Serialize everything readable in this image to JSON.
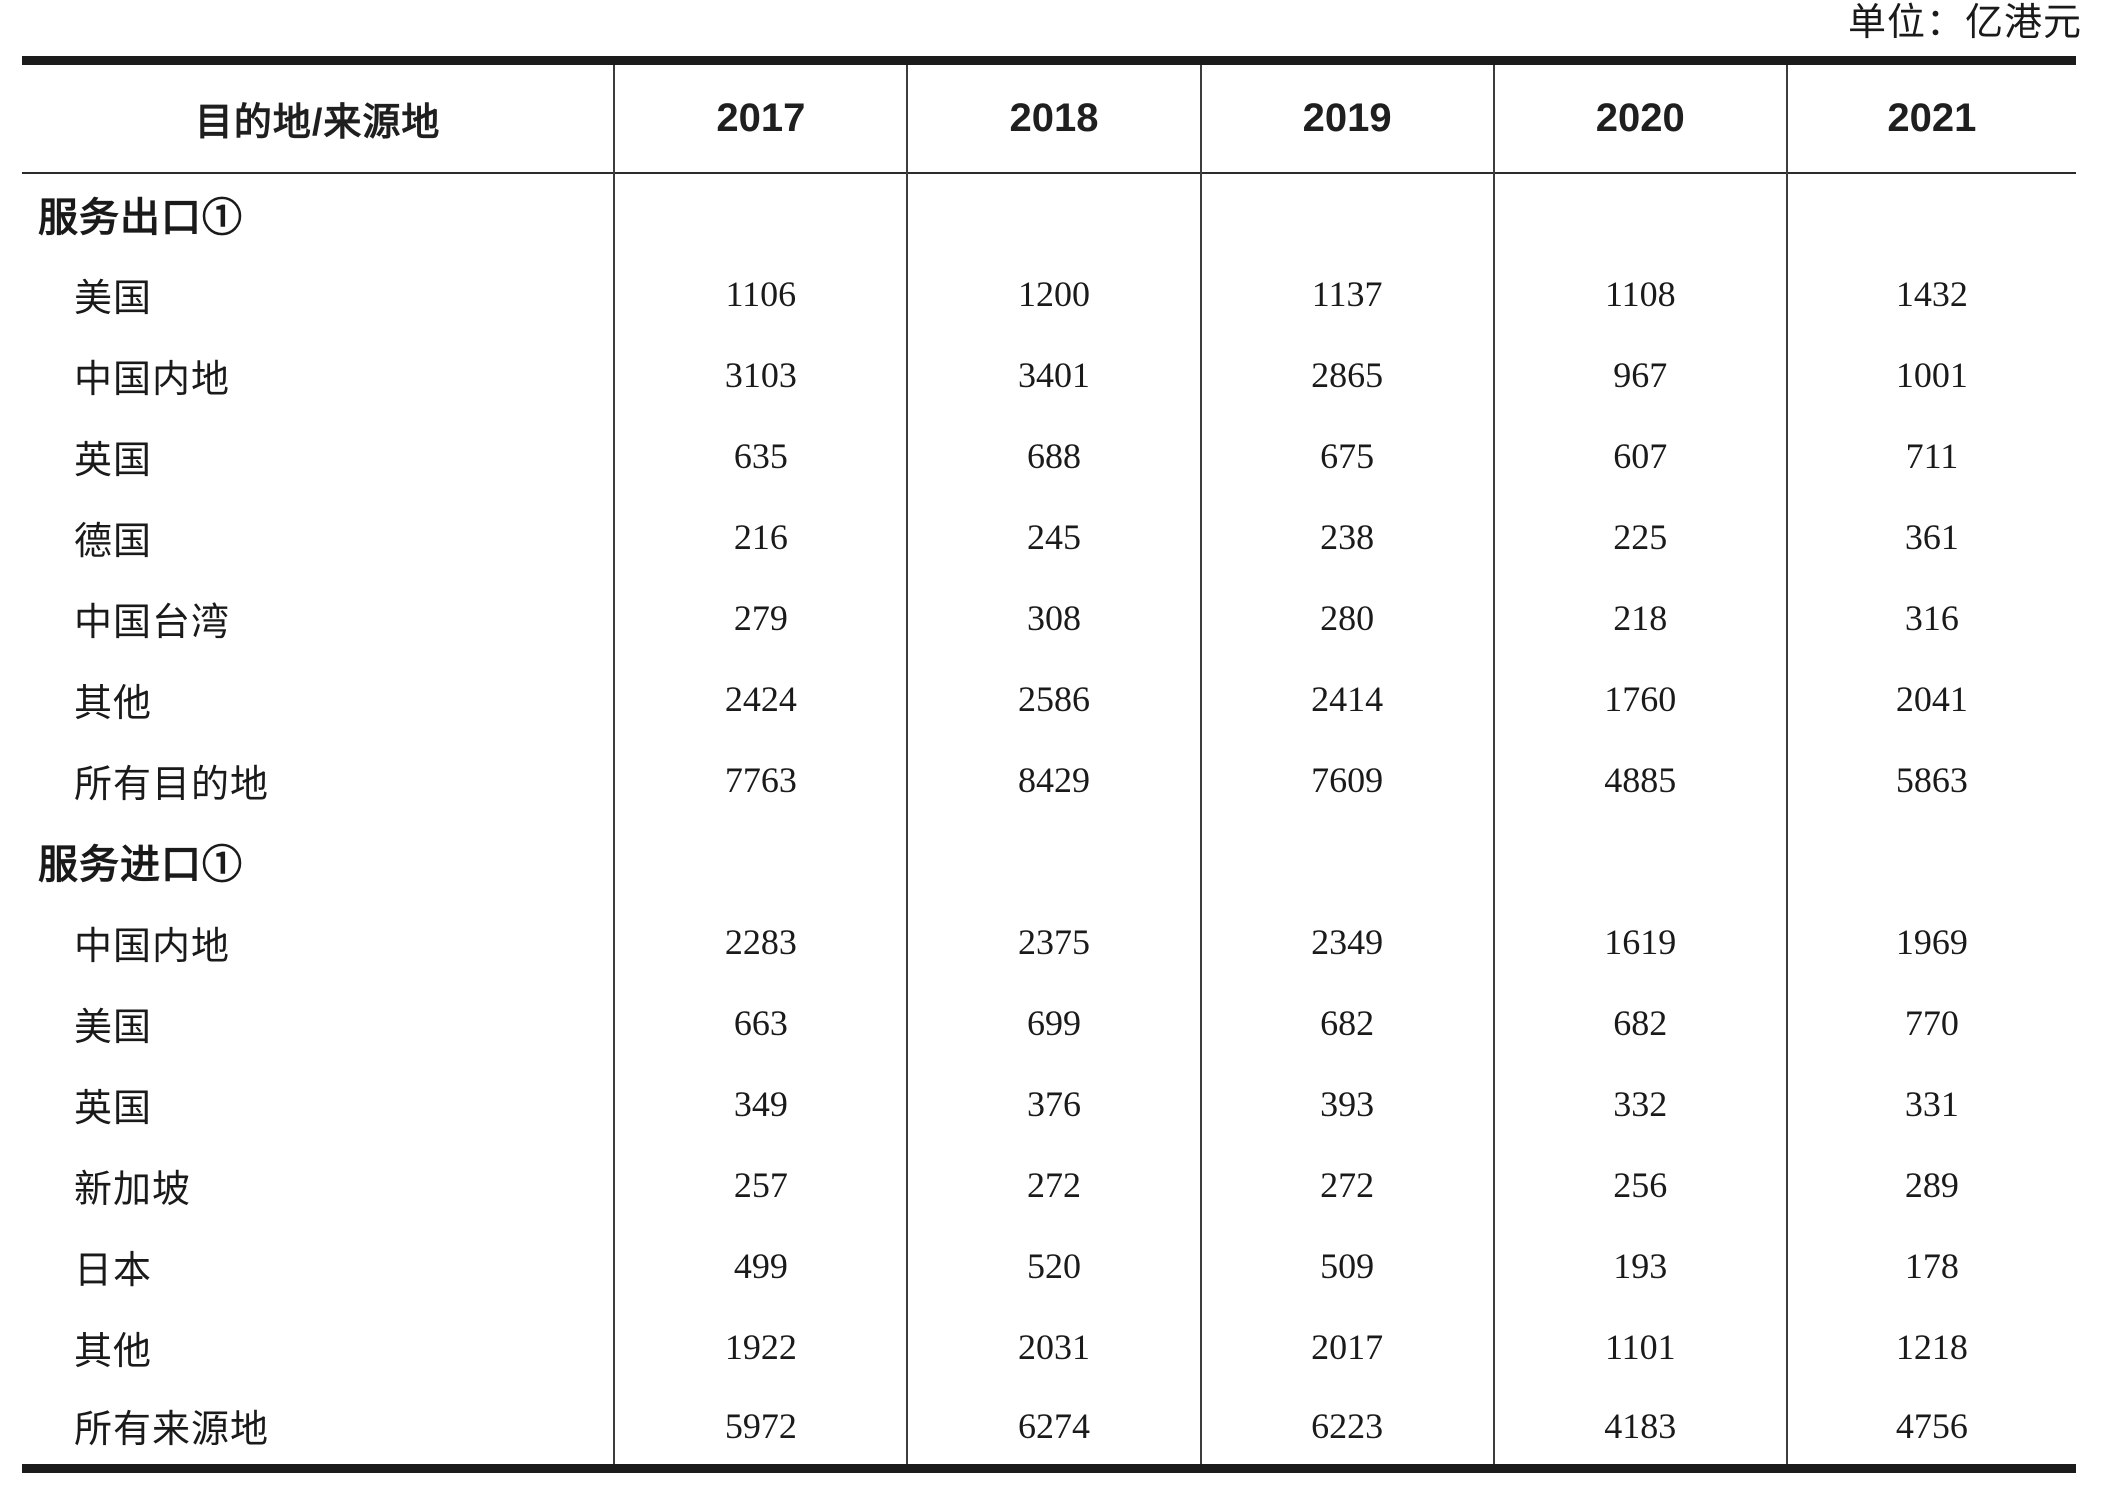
{
  "unit_label": "单位：亿港元",
  "table": {
    "header": {
      "col0": "目的地/来源地",
      "years": [
        "2017",
        "2018",
        "2019",
        "2020",
        "2021"
      ]
    },
    "sections": [
      {
        "title": "服务出口①",
        "rows": [
          {
            "label": "美国",
            "values": [
              "1106",
              "1200",
              "1137",
              "1108",
              "1432"
            ]
          },
          {
            "label": "中国内地",
            "values": [
              "3103",
              "3401",
              "2865",
              "967",
              "1001"
            ]
          },
          {
            "label": "英国",
            "values": [
              "635",
              "688",
              "675",
              "607",
              "711"
            ]
          },
          {
            "label": "德国",
            "values": [
              "216",
              "245",
              "238",
              "225",
              "361"
            ]
          },
          {
            "label": "中国台湾",
            "values": [
              "279",
              "308",
              "280",
              "218",
              "316"
            ]
          },
          {
            "label": "其他",
            "values": [
              "2424",
              "2586",
              "2414",
              "1760",
              "2041"
            ]
          },
          {
            "label": "所有目的地",
            "values": [
              "7763",
              "8429",
              "7609",
              "4885",
              "5863"
            ]
          }
        ]
      },
      {
        "title": "服务进口①",
        "rows": [
          {
            "label": "中国内地",
            "values": [
              "2283",
              "2375",
              "2349",
              "1619",
              "1969"
            ]
          },
          {
            "label": "美国",
            "values": [
              "663",
              "699",
              "682",
              "682",
              "770"
            ]
          },
          {
            "label": "英国",
            "values": [
              "349",
              "376",
              "393",
              "332",
              "331"
            ]
          },
          {
            "label": "新加坡",
            "values": [
              "257",
              "272",
              "272",
              "256",
              "289"
            ]
          },
          {
            "label": "日本",
            "values": [
              "499",
              "520",
              "509",
              "193",
              "178"
            ]
          },
          {
            "label": "其他",
            "values": [
              "1922",
              "2031",
              "2017",
              "1101",
              "1218"
            ]
          },
          {
            "label": "所有来源地",
            "values": [
              "5972",
              "6274",
              "6223",
              "4183",
              "4756"
            ]
          }
        ]
      }
    ]
  }
}
